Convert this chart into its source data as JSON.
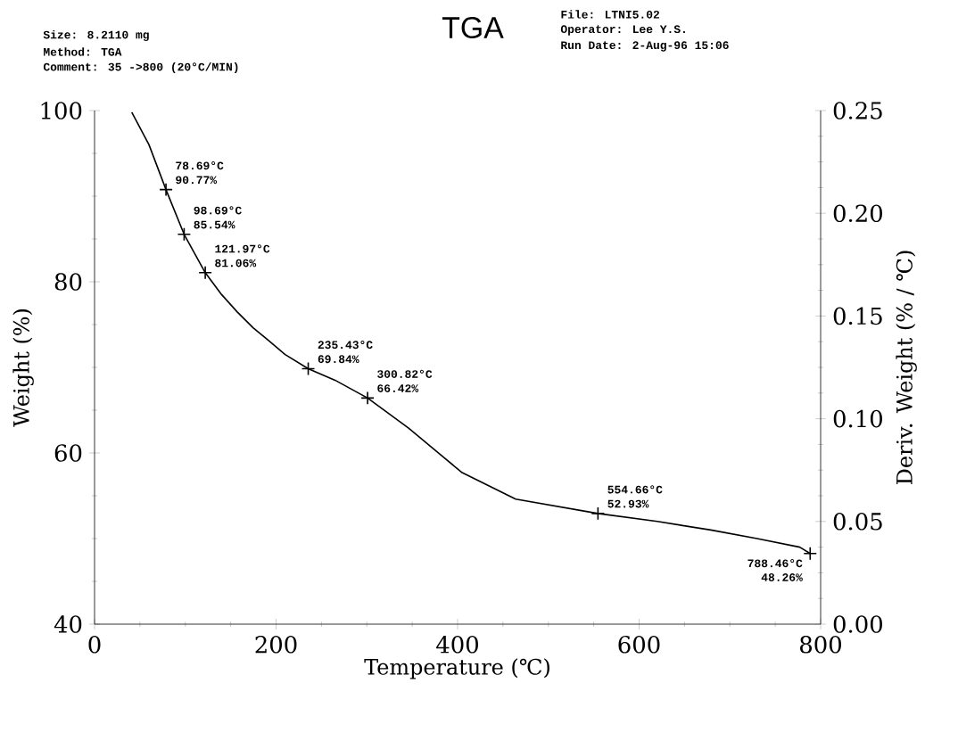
{
  "chart_data": {
    "type": "line",
    "title": "TGA",
    "xlabel": "Temperature (℃)",
    "ylabel": "Weight (%)",
    "y2label": "Deriv. Weight (% / ℃)",
    "xlim": [
      0,
      800
    ],
    "xticks": [
      0,
      200,
      400,
      600,
      800
    ],
    "ylim": [
      40,
      100
    ],
    "yticks": [
      40,
      60,
      80,
      100
    ],
    "y2lim": [
      0,
      0.25
    ],
    "y2ticks": [
      {
        "value": 0,
        "label": "0.00"
      },
      {
        "value": 0.05,
        "label": "0.05"
      },
      {
        "value": 0.1,
        "label": "0.10"
      },
      {
        "value": 0.15,
        "label": "0.15"
      },
      {
        "value": 0.2,
        "label": "0.20"
      },
      {
        "value": 0.25,
        "label": "0.25"
      }
    ],
    "series": [
      {
        "color": "#000000",
        "marker": "none",
        "x": [
          41,
          60,
          78.69,
          98.69,
          121.97,
          140,
          157,
          175,
          190,
          210,
          235.43,
          265,
          300.82,
          346,
          405,
          464,
          554.66,
          620,
          679,
          730,
          777,
          788.46
        ],
        "values": [
          99.8,
          96,
          90.77,
          85.54,
          81.06,
          78.5,
          76.5,
          74.6,
          73.3,
          71.5,
          69.84,
          68.5,
          66.42,
          62.9,
          57.7,
          54.6,
          52.93,
          52.0,
          51.0,
          50.0,
          49.0,
          48.26
        ]
      },
      {
        "type": "scatter",
        "color": "#000000",
        "marker": "cross",
        "x": [
          78.69,
          98.69,
          121.97,
          235.43,
          300.82,
          554.66,
          788.46
        ],
        "values": [
          90.77,
          85.54,
          81.06,
          69.84,
          66.42,
          52.93,
          48.26
        ]
      }
    ],
    "annotations": [
      "Size:    8.2110 mg",
      "Method:  TGA",
      "Comment: 35 ->800 (20°C/MIN)",
      "File: LTNI5.02",
      "Operator: Lee Y.S.",
      "Run Date: 2-Aug-96  15:06",
      {
        "text": "78.69°C",
        "x": 78.69,
        "y": 90.77
      },
      {
        "text": "90.77%",
        "x": 78.69,
        "y": 90.77
      },
      {
        "text": "98.69°C",
        "x": 98.69,
        "y": 85.54
      },
      {
        "text": "85.54%",
        "x": 98.69,
        "y": 85.54
      },
      {
        "text": "121.97°C",
        "x": 121.97,
        "y": 81.06
      },
      {
        "text": "81.06%",
        "x": 121.97,
        "y": 81.06
      },
      {
        "text": "235.43°C",
        "x": 235.43,
        "y": 69.84
      },
      {
        "text": "69.84%",
        "x": 235.43,
        "y": 69.84
      },
      {
        "text": "300.82°C",
        "x": 300.82,
        "y": 66.42
      },
      {
        "text": "66.42%",
        "x": 300.82,
        "y": 66.42
      },
      {
        "text": "554.66°C",
        "x": 554.66,
        "y": 52.93
      },
      {
        "text": "52.93%",
        "x": 554.66,
        "y": 52.93
      },
      {
        "text": "788.46°C",
        "x": 788.46,
        "y": 48.26
      },
      {
        "text": "48.26%",
        "x": 788.46,
        "y": 48.26
      }
    ]
  }
}
